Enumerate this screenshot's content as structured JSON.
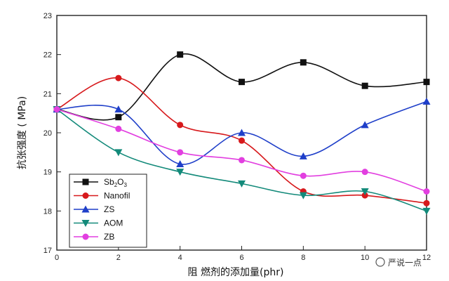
{
  "chart_data": {
    "type": "line",
    "x": [
      0,
      2,
      4,
      6,
      8,
      10,
      12
    ],
    "x_ticks": [
      "0",
      "2",
      "4",
      "6",
      "8",
      "10",
      "12"
    ],
    "y_ticks": [
      "17",
      "18",
      "19",
      "20",
      "21",
      "22",
      "23"
    ],
    "xlim": [
      0,
      12
    ],
    "ylim": [
      17,
      23
    ],
    "xlabel": "阻 燃剂的添加量(phr)",
    "ylabel": "抗张强度 ( MPa)",
    "legend_position": "left",
    "grid": false,
    "series": [
      {
        "name_main": "Sb",
        "name_sub1": "2",
        "name_mid": "O",
        "name_sub2": "3",
        "color": "#111111",
        "marker": "square",
        "values": [
          20.6,
          20.4,
          22.0,
          21.3,
          21.8,
          21.2,
          21.3
        ]
      },
      {
        "name": "Nanofil",
        "color": "#d7191c",
        "marker": "circle",
        "values": [
          20.6,
          21.4,
          20.2,
          19.8,
          18.5,
          18.4,
          18.2
        ]
      },
      {
        "name": "ZS",
        "color": "#1f3fc9",
        "marker": "triangle-up",
        "values": [
          20.6,
          20.6,
          19.2,
          20.0,
          19.4,
          20.2,
          20.8
        ]
      },
      {
        "name": "AOM",
        "color": "#138a7a",
        "marker": "triangle-down",
        "values": [
          20.6,
          19.5,
          19.0,
          18.7,
          18.4,
          18.5,
          18.0
        ]
      },
      {
        "name": "ZB",
        "color": "#e23fe0",
        "marker": "circle",
        "values": [
          20.6,
          20.1,
          19.5,
          19.3,
          18.9,
          19.0,
          18.5
        ]
      }
    ]
  },
  "watermark": {
    "text": "严说一点"
  }
}
